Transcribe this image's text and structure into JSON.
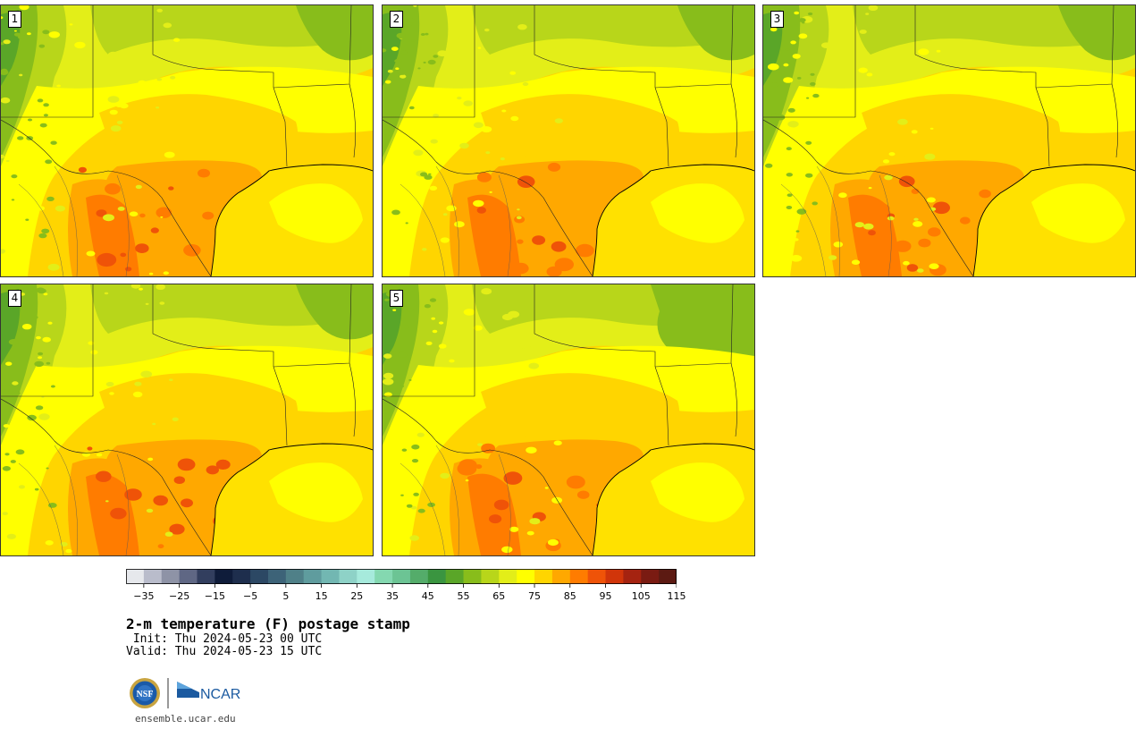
{
  "panels": [
    {
      "label": "1",
      "variant": 1
    },
    {
      "label": "2",
      "variant": 2
    },
    {
      "label": "3",
      "variant": 3
    },
    {
      "label": "4",
      "variant": 4
    },
    {
      "label": "5",
      "variant": 5
    }
  ],
  "colorbar": {
    "colors": [
      "#e6e8ec",
      "#b9bccb",
      "#8e93a6",
      "#5f6784",
      "#323e5e",
      "#0f1c3a",
      "#1e2e4d",
      "#2c4864",
      "#3d6378",
      "#4f8088",
      "#5f9c9e",
      "#72b7b2",
      "#8ed2c7",
      "#a6eadc",
      "#84d8b0",
      "#6cc494",
      "#54ac6a",
      "#3a9540",
      "#5aa628",
      "#88bd1b",
      "#b8d61a",
      "#e3ee18",
      "#ffff00",
      "#ffd500",
      "#ffa800",
      "#ff7c00",
      "#ef5308",
      "#d1350a",
      "#a52310",
      "#7a1b12",
      "#5c1a12"
    ],
    "ticks": [
      "−35",
      "−25",
      "−15",
      "−5",
      "5",
      "15",
      "25",
      "35",
      "45",
      "55",
      "65",
      "75",
      "85",
      "95",
      "105",
      "115"
    ]
  },
  "title": "2-m temperature (F) postage stamp",
  "init": " Init: Thu 2024-05-23 00 UTC",
  "valid": "Valid: Thu 2024-05-23 15 UTC",
  "logo": {
    "nsf": "NSF",
    "ncar": "NCAR"
  },
  "site": "ensemble.ucar.edu"
}
